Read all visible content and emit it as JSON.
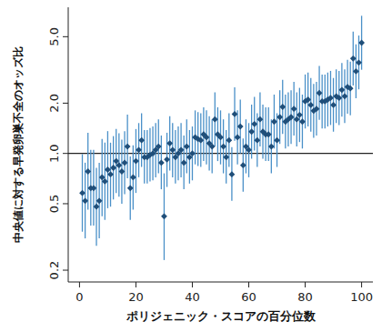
{
  "chart_data": {
    "type": "scatter",
    "x_label": "ポリジェニック・スコアの百分位数",
    "y_label": "中央値に対する早発卵巣不全のオッズ比",
    "log": "y",
    "marker": "diamond",
    "color": "#1f4e79",
    "error_color": "#4a90c8",
    "xlim": [
      -4,
      104
    ],
    "ylim": [
      0.17,
      7.5
    ],
    "xticks": [
      0,
      20,
      40,
      60,
      80,
      100
    ],
    "yticks": [
      0.2,
      0.5,
      {
        "value": 1,
        "label": "1.0"
      },
      {
        "value": 2,
        "label": "2.0"
      },
      {
        "value": 5,
        "label": "5.0"
      }
    ],
    "reference_line": 1,
    "x": [
      1,
      2,
      3,
      4,
      5,
      6,
      7,
      8,
      9,
      10,
      11,
      12,
      13,
      14,
      15,
      16,
      17,
      18,
      19,
      20,
      21,
      22,
      23,
      24,
      25,
      26,
      27,
      28,
      29,
      30,
      31,
      32,
      33,
      34,
      35,
      36,
      37,
      38,
      39,
      40,
      41,
      42,
      43,
      44,
      45,
      46,
      47,
      48,
      49,
      50,
      51,
      52,
      53,
      54,
      55,
      56,
      57,
      58,
      59,
      60,
      61,
      62,
      63,
      64,
      65,
      66,
      67,
      68,
      69,
      70,
      71,
      72,
      73,
      74,
      75,
      76,
      77,
      78,
      79,
      80,
      81,
      82,
      83,
      84,
      85,
      86,
      87,
      88,
      89,
      90,
      91,
      92,
      93,
      94,
      95,
      96,
      97,
      98,
      99,
      100
    ],
    "values": [
      0.58,
      0.52,
      0.78,
      0.62,
      0.62,
      0.48,
      0.52,
      0.72,
      0.68,
      0.8,
      0.75,
      0.82,
      0.9,
      0.85,
      0.78,
      0.88,
      1.1,
      0.62,
      0.72,
      0.9,
      1.05,
      1.2,
      0.95,
      0.95,
      0.98,
      1.0,
      1.05,
      1.1,
      0.88,
      0.42,
      0.92,
      1.15,
      1.05,
      0.95,
      1.0,
      1.05,
      0.88,
      1.1,
      0.95,
      1.0,
      1.25,
      1.22,
      1.2,
      1.3,
      1.25,
      1.15,
      1.1,
      1.6,
      1.3,
      1.25,
      1.1,
      0.95,
      1.2,
      0.75,
      1.72,
      1.25,
      1.45,
      0.85,
      1.1,
      1.05,
      1.35,
      1.5,
      1.2,
      1.6,
      1.35,
      1.3,
      1.3,
      1.1,
      1.55,
      1.2,
      1.65,
      1.9,
      1.55,
      1.6,
      1.65,
      1.85,
      1.6,
      1.7,
      1.55,
      2.05,
      2.1,
      1.95,
      1.8,
      1.85,
      2.3,
      2.05,
      2.05,
      2.1,
      2.15,
      1.95,
      2.2,
      2.15,
      2.4,
      2.2,
      2.5,
      2.45,
      3.7,
      3.1,
      3.5,
      4.6
    ],
    "lower": [
      0.34,
      0.31,
      0.46,
      0.37,
      0.37,
      0.28,
      0.31,
      0.42,
      0.4,
      0.47,
      0.48,
      0.53,
      0.58,
      0.55,
      0.5,
      0.57,
      0.71,
      0.4,
      0.46,
      0.58,
      0.72,
      0.83,
      0.66,
      0.66,
      0.68,
      0.69,
      0.72,
      0.76,
      0.61,
      0.23,
      0.63,
      0.79,
      0.72,
      0.66,
      0.69,
      0.72,
      0.61,
      0.76,
      0.66,
      0.69,
      0.86,
      0.84,
      0.83,
      0.9,
      0.86,
      0.79,
      0.76,
      1.1,
      0.9,
      0.86,
      0.76,
      0.66,
      0.83,
      0.52,
      1.19,
      0.86,
      1.0,
      0.59,
      0.76,
      0.72,
      0.93,
      1.04,
      0.83,
      1.1,
      0.93,
      0.9,
      0.9,
      0.76,
      1.07,
      0.83,
      1.14,
      1.31,
      1.07,
      1.1,
      1.14,
      1.28,
      1.1,
      1.17,
      1.07,
      1.41,
      1.45,
      1.35,
      1.24,
      1.28,
      1.59,
      1.41,
      1.41,
      1.45,
      1.48,
      1.35,
      1.52,
      1.48,
      1.66,
      1.52,
      1.73,
      1.69,
      2.55,
      2.14,
      2.42,
      3.17
    ],
    "upper": [
      0.99,
      0.88,
      1.33,
      1.05,
      1.05,
      0.82,
      0.88,
      1.22,
      1.16,
      1.36,
      1.16,
      1.27,
      1.4,
      1.32,
      1.21,
      1.36,
      1.71,
      0.96,
      1.12,
      1.4,
      1.52,
      1.74,
      1.38,
      1.38,
      1.42,
      1.45,
      1.52,
      1.6,
      1.28,
      0.76,
      1.33,
      1.67,
      1.52,
      1.38,
      1.45,
      1.52,
      1.28,
      1.6,
      1.38,
      1.45,
      1.81,
      1.77,
      1.74,
      1.89,
      1.81,
      1.67,
      1.6,
      2.32,
      1.89,
      1.81,
      1.6,
      1.38,
      1.74,
      1.09,
      2.49,
      1.81,
      2.1,
      1.23,
      1.6,
      1.52,
      1.96,
      2.18,
      1.74,
      2.32,
      1.96,
      1.89,
      1.89,
      1.6,
      2.25,
      1.74,
      2.39,
      2.76,
      2.25,
      2.32,
      2.39,
      2.68,
      2.32,
      2.47,
      2.25,
      2.97,
      3.05,
      2.83,
      2.61,
      2.68,
      3.34,
      2.97,
      2.97,
      3.05,
      3.12,
      2.83,
      3.19,
      3.12,
      3.48,
      3.19,
      3.63,
      3.55,
      5.37,
      4.5,
      5.08,
      6.67
    ]
  }
}
